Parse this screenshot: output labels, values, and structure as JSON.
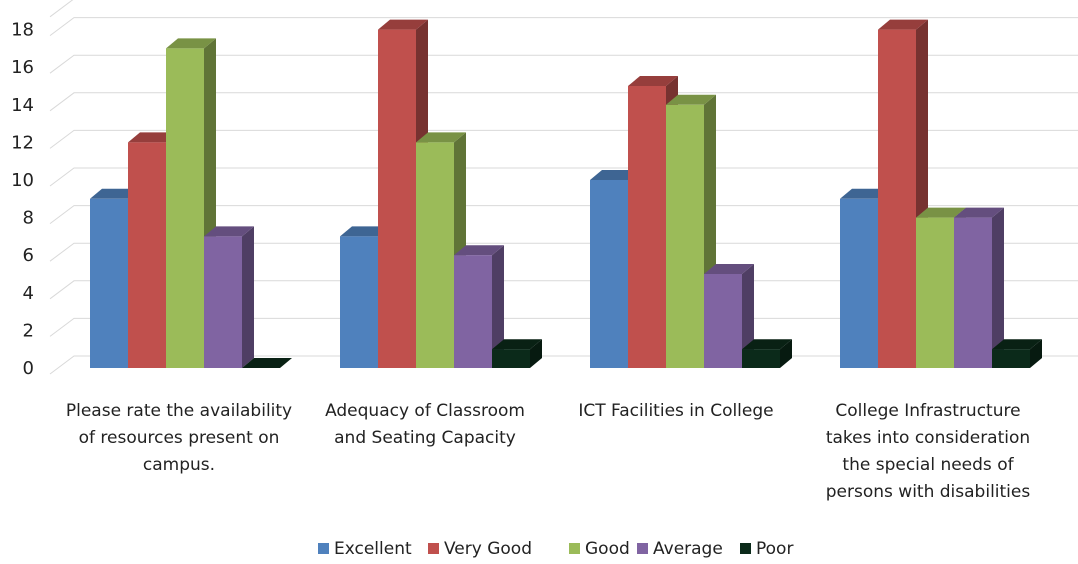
{
  "chart_data": {
    "type": "bar",
    "style": "3d-clustered-column",
    "categories": [
      [
        "Please rate the availability",
        "of resources present on",
        "campus."
      ],
      [
        "Adequacy of Classroom",
        "and Seating Capacity"
      ],
      [
        "ICT Facilities in College"
      ],
      [
        "College Infrastructure",
        "takes into consideration",
        "the special needs of",
        "persons with disabilities"
      ]
    ],
    "series": [
      {
        "name": "Excellent",
        "color": "#4F81BD",
        "values": [
          9,
          7,
          10,
          9
        ]
      },
      {
        "name": "Very Good",
        "color": "#C0504D",
        "values": [
          12,
          18,
          15,
          18
        ]
      },
      {
        "name": "Good",
        "color": "#9BBB59",
        "values": [
          17,
          12,
          14,
          8
        ]
      },
      {
        "name": "Average",
        "color": "#8064A2",
        "values": [
          7,
          6,
          5,
          8
        ]
      },
      {
        "name": "Poor",
        "color": "#0B2A1A",
        "values": [
          0,
          1,
          1,
          1
        ]
      }
    ],
    "ylim": [
      0,
      19
    ],
    "yticks": [
      0,
      2,
      4,
      6,
      8,
      10,
      12,
      14,
      16,
      18
    ],
    "grid": true,
    "legend": "bottom",
    "title": "",
    "xlabel": "",
    "ylabel": ""
  }
}
